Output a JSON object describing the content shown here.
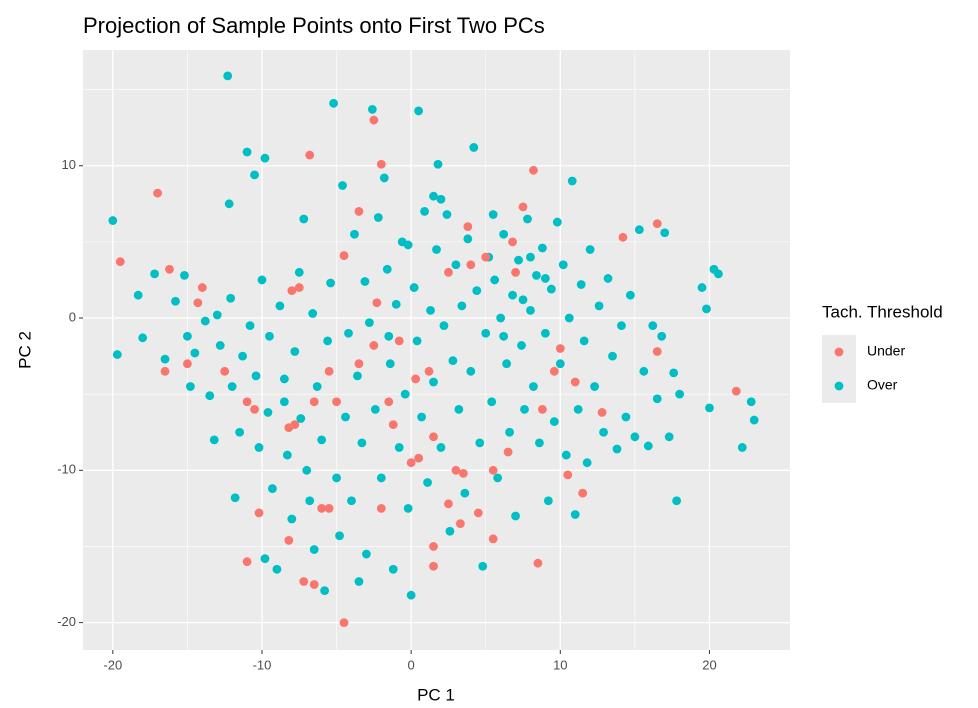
{
  "chart_data": {
    "type": "scatter",
    "title": "Projection of Sample Points onto First Two PCs",
    "x_label": "PC 1",
    "y_label": "PC 2",
    "legend_title": "Tach. Threshold",
    "legend_position": "right",
    "grid": true,
    "xlim": [
      -22,
      25.4
    ],
    "ylim": [
      -21.8,
      17.6
    ],
    "xticks": [
      -20,
      -10,
      0,
      10,
      20
    ],
    "yticks": [
      -20,
      -10,
      0,
      10
    ],
    "x_minor_ticks": [
      -15,
      -5,
      5,
      15
    ],
    "y_minor_ticks": [
      -15,
      -5,
      5,
      15
    ],
    "series": [
      {
        "name": "Under",
        "color": "#F8766D",
        "x": [
          -17,
          -19.5,
          -16.2,
          -14,
          -16.5,
          -15,
          -14.3,
          -11,
          -10.2,
          -8.2,
          -7.2,
          -6.5,
          -4.5,
          -5.5,
          -5.5,
          -6.8,
          -7.5,
          -8,
          -7.8,
          -8.2,
          -12.5,
          -11,
          -10.5,
          -2,
          -2.5,
          -3.5,
          -2.3,
          -4.5,
          -5,
          -3.5,
          -1.5,
          -2,
          -6,
          1.5,
          1.5,
          2.5,
          3.3,
          5.5,
          8.5,
          0,
          1.5,
          1.2,
          0.5,
          3,
          3.5,
          4.5,
          6.5,
          5.5,
          7.5,
          8.2,
          6.8,
          7,
          10,
          11,
          10.5,
          11.5,
          12.8,
          14.2,
          16.5,
          16.5,
          21.8,
          8.8,
          9.6,
          2.5,
          4,
          -2.5,
          0.3,
          -0.8,
          3.8,
          5,
          -1.2,
          -6.5
        ],
        "y": [
          8.2,
          3.7,
          3.2,
          2,
          -3.5,
          -3,
          1,
          -16,
          -12.8,
          -14.6,
          -17.3,
          -17.5,
          -20,
          -12.5,
          -3.5,
          10.7,
          2,
          1.8,
          -7,
          -7.2,
          -3.5,
          -5.5,
          -6,
          10.1,
          13,
          7,
          1,
          4.1,
          -5.5,
          -3,
          -5.5,
          -12.5,
          -12.5,
          -15,
          -16.3,
          -12.2,
          -13.5,
          -14.5,
          -16.1,
          -9.5,
          -7.8,
          -3.5,
          -9.2,
          -10,
          -10.2,
          -12.8,
          -8.8,
          -10,
          7.3,
          9.7,
          5,
          3,
          -2,
          -4.2,
          -10.3,
          -11.5,
          -6.2,
          5.3,
          6.2,
          -2.2,
          -4.8,
          -6,
          -3.5,
          3,
          3.5,
          -1.8,
          -4,
          -1.5,
          6,
          4,
          -7,
          -5.5
        ]
      },
      {
        "name": "Over",
        "color": "#00BFC4",
        "x": [
          -20,
          -19.7,
          -18.3,
          -18,
          -17.2,
          -16.5,
          -15.8,
          -15.2,
          -15,
          -14.8,
          -14.5,
          -13.8,
          -13.5,
          -13.2,
          -13,
          -12.8,
          -12.3,
          -12.2,
          -12.1,
          -12,
          -11.8,
          -11.5,
          -11.3,
          -11,
          -10.8,
          -10.5,
          -10.4,
          -10.2,
          -10,
          -9.8,
          -9.8,
          -9.6,
          -9.5,
          -9.3,
          -9,
          -8.8,
          -8.5,
          -8.3,
          -8,
          -7.8,
          -7.5,
          -7.4,
          -7.2,
          -7,
          -6.8,
          -6.6,
          -6.5,
          -6.3,
          -6,
          -5.8,
          -5.6,
          -5.4,
          -5.2,
          -5,
          -4.8,
          -4.6,
          -4.4,
          -4.2,
          -4,
          -3.8,
          -3.6,
          -3.5,
          -3.3,
          -3.1,
          -3,
          -2.8,
          -2.6,
          -2.4,
          -2.2,
          -2,
          -1.8,
          -1.6,
          -1.4,
          -1.2,
          -1,
          -0.8,
          -0.6,
          -0.4,
          -0.2,
          0,
          0.2,
          0.4,
          0.5,
          0.7,
          0.9,
          1.1,
          1.3,
          1.5,
          1.7,
          1.8,
          2,
          2.2,
          2.4,
          2.6,
          2.8,
          3,
          3.2,
          3.4,
          3.6,
          3.8,
          4,
          4.2,
          4.4,
          4.6,
          4.8,
          5,
          5.2,
          5.4,
          5.6,
          5.8,
          6,
          6.2,
          6.4,
          6.6,
          6.8,
          7,
          7.2,
          7.4,
          7.6,
          7.8,
          8,
          8.2,
          8.4,
          8.6,
          8.8,
          9,
          9.2,
          9.4,
          9.6,
          9.8,
          10,
          10.2,
          10.4,
          10.6,
          10.8,
          11,
          11.2,
          11.4,
          11.6,
          11.8,
          12,
          12.3,
          12.6,
          12.9,
          13.2,
          13.5,
          13.8,
          14.1,
          14.4,
          14.7,
          15,
          15.3,
          15.6,
          15.9,
          16.2,
          16.5,
          16.8,
          17,
          17.3,
          17.6,
          17.8,
          18,
          19.8,
          20,
          20.3,
          20.6,
          22.2,
          22.8,
          23,
          19.5,
          7.5,
          6.2,
          9,
          8,
          5.5,
          2,
          1.5,
          -0.2,
          -1.5,
          -8.5
        ],
        "y": [
          6.4,
          -2.4,
          1.5,
          -1.3,
          2.9,
          -2.7,
          1.1,
          2.8,
          -1.2,
          -4.5,
          -2.3,
          -0.2,
          -5.1,
          -8,
          0.2,
          -1.8,
          15.9,
          7.5,
          1.3,
          -4.5,
          -11.8,
          -7.5,
          -2.5,
          10.9,
          -0.5,
          9.4,
          -3.8,
          -8.5,
          2.5,
          10.5,
          -15.8,
          -6.2,
          -1.2,
          -11.2,
          -16.5,
          0.8,
          -4,
          -9,
          -13.2,
          -2.2,
          3,
          -6.6,
          6.5,
          -10,
          -12,
          0.3,
          -15.2,
          -4.5,
          -8,
          -17.9,
          -1.5,
          2.3,
          14.1,
          -10.5,
          -14.3,
          8.7,
          -6.5,
          -1,
          -12,
          5.5,
          -3.8,
          -17.3,
          -8.2,
          2.4,
          -15.5,
          -0.3,
          13.7,
          -6,
          6.6,
          -10.5,
          9.2,
          3.2,
          -3,
          -16.5,
          0.9,
          -8.5,
          5,
          -5,
          -12.5,
          -18.2,
          2,
          -1.5,
          13.6,
          -6.5,
          7,
          -10.8,
          0.5,
          -4.2,
          4.5,
          10.1,
          -8.5,
          -0.5,
          6.8,
          -14,
          -2.8,
          3.5,
          -6,
          0.8,
          -11.5,
          5.2,
          -3.5,
          11.2,
          1.8,
          -8.2,
          -16.3,
          -1,
          4,
          -5.5,
          2.5,
          -10.5,
          0,
          5.5,
          -3,
          -7.5,
          1.5,
          -13,
          3.8,
          -1.8,
          -6,
          6.5,
          0.5,
          -4.5,
          2.8,
          -8.2,
          4.6,
          -1,
          -12,
          1.9,
          -6.8,
          6.3,
          -3,
          3.5,
          -9,
          0,
          9,
          -12.9,
          -6,
          2.2,
          -1.5,
          -9.5,
          4.5,
          -4.5,
          0.8,
          -7.5,
          2.6,
          -2.5,
          -8.6,
          -0.5,
          -6.5,
          1.5,
          -7.8,
          5.8,
          -3.5,
          -8.4,
          -0.5,
          -5.3,
          -1.2,
          5.6,
          -7.8,
          -3.6,
          -12,
          -5,
          0.6,
          -5.9,
          3.2,
          2.9,
          -8.5,
          -5.5,
          -6.7,
          2,
          1.2,
          -1.2,
          2.6,
          4,
          6.8,
          7.8,
          8,
          4.8,
          -1.2,
          -5.5
        ]
      }
    ]
  }
}
